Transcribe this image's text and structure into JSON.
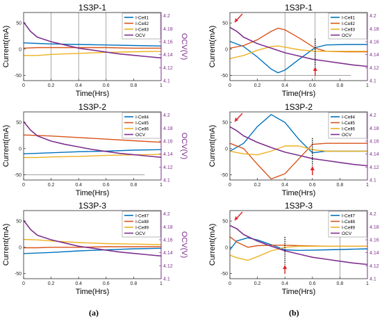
{
  "colors": {
    "c1": "#0072BD",
    "c2": "#D95319",
    "c3": "#EDB120",
    "ocv": "#7E2F8E",
    "arrow": "#E0262C",
    "axis": "#262626",
    "grid": "#6b6b6b"
  },
  "captions": {
    "a": "(a)",
    "b": "(b)"
  },
  "chart_data": [
    {
      "id": "a1",
      "type": "line",
      "title": "1S3P-1",
      "xlabel": "Time(Hrs)",
      "ylabel": "Current(mA)",
      "y2label": "OCV(V)",
      "xlim": [
        0,
        1
      ],
      "ylim": [
        -60,
        70
      ],
      "y2lim": [
        4.1,
        4.205
      ],
      "xticks": [
        "0",
        "0.2",
        "0.4",
        "0.6",
        "0.8",
        "1"
      ],
      "yticks": [
        "-50",
        "0",
        "50"
      ],
      "y2ticks": [
        "4.1",
        "4.12",
        "4.14",
        "4.16",
        "4.18",
        "4.2"
      ],
      "legend": [
        "I-Cell1",
        "I-Cell2",
        "I-Cell3",
        "OCV"
      ],
      "series": [
        {
          "name": "I-Cell1",
          "x": [
            0,
            0.1,
            0.2,
            0.4,
            0.6,
            0.8,
            1.0
          ],
          "y": [
            12,
            11,
            10,
            9,
            8,
            7,
            6
          ]
        },
        {
          "name": "I-Cell2",
          "x": [
            0,
            0.1,
            0.2,
            0.4,
            0.6,
            0.8,
            1.0
          ],
          "y": [
            2,
            3,
            3,
            3,
            3,
            2,
            2
          ]
        },
        {
          "name": "I-Cell3",
          "x": [
            0,
            0.1,
            0.2,
            0.4,
            0.6,
            0.8,
            1.0
          ],
          "y": [
            -12,
            -12,
            -10,
            -8,
            -6,
            -5,
            -4
          ]
        },
        {
          "name": "OCV",
          "x": [
            0,
            0.05,
            0.1,
            0.2,
            0.3,
            0.4,
            0.5,
            0.6,
            0.7,
            0.8,
            0.9,
            1.0
          ],
          "y": [
            4.19,
            4.176,
            4.167,
            4.16,
            4.155,
            4.15,
            4.147,
            4.144,
            4.141,
            4.139,
            4.137,
            4.135
          ]
        }
      ],
      "vlines": [
        0.2,
        0.4,
        0.6
      ],
      "hlines": []
    },
    {
      "id": "a2",
      "type": "line",
      "title": "1S3P-2",
      "xlabel": "Time(Hrs)",
      "ylabel": "Current(mA)",
      "y2label": "OCV(V)",
      "xlim": [
        0,
        1
      ],
      "ylim": [
        -60,
        70
      ],
      "y2lim": [
        4.1,
        4.205
      ],
      "xticks": [
        "0",
        "0.2",
        "0.4",
        "0.6",
        "0.8",
        "1"
      ],
      "yticks": [
        "-50",
        "0",
        "50"
      ],
      "y2ticks": [
        "4.1",
        "4.12",
        "4.14",
        "4.16",
        "4.18",
        "4.2"
      ],
      "legend": [
        "I-Cell4",
        "I-Cell5",
        "I-Cell6",
        "OCV"
      ],
      "series": [
        {
          "name": "I-Cell4",
          "x": [
            0,
            0.1,
            0.2,
            0.4,
            0.6,
            0.8,
            1.0
          ],
          "y": [
            -10,
            -9,
            -8,
            -6,
            -5,
            -3,
            -2
          ]
        },
        {
          "name": "I-Cell5",
          "x": [
            0,
            0.1,
            0.2,
            0.4,
            0.6,
            0.8,
            1.0
          ],
          "y": [
            26,
            25,
            24,
            21,
            18,
            15,
            12
          ]
        },
        {
          "name": "I-Cell6",
          "x": [
            0,
            0.1,
            0.2,
            0.4,
            0.6,
            0.8,
            1.0
          ],
          "y": [
            -17,
            -17,
            -16,
            -15,
            -13,
            -12,
            -11
          ]
        },
        {
          "name": "OCV",
          "x": [
            0,
            0.05,
            0.1,
            0.2,
            0.3,
            0.4,
            0.5,
            0.6,
            0.7,
            0.8,
            0.9,
            1.0
          ],
          "y": [
            4.19,
            4.177,
            4.168,
            4.16,
            4.155,
            4.151,
            4.147,
            4.144,
            4.141,
            4.139,
            4.137,
            4.135
          ]
        }
      ],
      "vlines": [],
      "hlines": [
        -50
      ]
    },
    {
      "id": "a3",
      "type": "line",
      "title": "1S3P-3",
      "xlabel": "Time(Hrs)",
      "ylabel": "Current(mA)",
      "y2label": "OCV(V)",
      "xlim": [
        0,
        1
      ],
      "ylim": [
        -60,
        70
      ],
      "y2lim": [
        4.1,
        4.205
      ],
      "xticks": [
        "0",
        "0.2",
        "0.4",
        "0.6",
        "0.8",
        "1"
      ],
      "yticks": [
        "-50",
        "0",
        "50"
      ],
      "y2ticks": [
        "4.1",
        "4.12",
        "4.14",
        "4.16",
        "4.18",
        "4.2"
      ],
      "legend": [
        "I-Cell7",
        "I-Cell8",
        "I-Cell9",
        "OCV"
      ],
      "series": [
        {
          "name": "I-Cell7",
          "x": [
            0,
            0.1,
            0.2,
            0.4,
            0.6,
            0.8,
            1.0
          ],
          "y": [
            -12,
            -11,
            -10,
            -7,
            -5,
            -3,
            -2
          ]
        },
        {
          "name": "I-Cell8",
          "x": [
            0,
            0.1,
            0.2,
            0.4,
            0.6,
            0.8,
            1.0
          ],
          "y": [
            -1,
            -1,
            0,
            0,
            1,
            1,
            1
          ]
        },
        {
          "name": "I-Cell9",
          "x": [
            0,
            0.1,
            0.2,
            0.4,
            0.6,
            0.8,
            1.0
          ],
          "y": [
            15,
            14,
            12,
            9,
            7,
            6,
            5
          ]
        },
        {
          "name": "OCV",
          "x": [
            0,
            0.05,
            0.1,
            0.2,
            0.3,
            0.4,
            0.5,
            0.6,
            0.7,
            0.8,
            0.9,
            1.0
          ],
          "y": [
            4.19,
            4.176,
            4.167,
            4.16,
            4.155,
            4.15,
            4.147,
            4.144,
            4.141,
            4.139,
            4.137,
            4.135
          ]
        }
      ],
      "vlines": [],
      "hlines": []
    },
    {
      "id": "b1",
      "type": "line",
      "title": "1S3P-1",
      "xlabel": "Time(Hrs)",
      "ylabel": "Current(mA)",
      "y2label": "OCV(V)",
      "xlim": [
        0,
        1
      ],
      "ylim": [
        -60,
        70
      ],
      "y2lim": [
        4.1,
        4.205
      ],
      "xticks": [
        "0",
        "0.2",
        "0.4",
        "0.6",
        "0.8",
        "1"
      ],
      "yticks": [
        "-50",
        "0",
        "50"
      ],
      "y2ticks": [
        "4.1",
        "4.12",
        "4.14",
        "4.16",
        "4.18",
        "4.2"
      ],
      "legend": [
        "I-Cell1",
        "I-Cell2",
        "I-Cell3",
        "OCV"
      ],
      "series": [
        {
          "name": "I-Cell1",
          "x": [
            0,
            0.1,
            0.2,
            0.3,
            0.35,
            0.4,
            0.5,
            0.62,
            0.7,
            0.85,
            1.0
          ],
          "y": [
            15,
            5,
            -15,
            -38,
            -45,
            -40,
            -20,
            3,
            8,
            9,
            9
          ]
        },
        {
          "name": "I-Cell2",
          "x": [
            0,
            0.1,
            0.2,
            0.3,
            0.35,
            0.4,
            0.5,
            0.62,
            0.7,
            0.85,
            1.0
          ],
          "y": [
            2,
            7,
            18,
            34,
            40,
            37,
            22,
            2,
            -4,
            -5,
            -5
          ]
        },
        {
          "name": "I-Cell3",
          "x": [
            0,
            0.1,
            0.2,
            0.3,
            0.35,
            0.4,
            0.5,
            0.62,
            0.7,
            0.85,
            1.0
          ],
          "y": [
            -18,
            -12,
            -2,
            5,
            6,
            4,
            -1,
            -4,
            -4,
            -4,
            -4
          ]
        },
        {
          "name": "OCV",
          "x": [
            0,
            0.05,
            0.1,
            0.2,
            0.3,
            0.4,
            0.5,
            0.6,
            0.7,
            0.8,
            0.9,
            1.0
          ],
          "y": [
            4.182,
            4.176,
            4.167,
            4.157,
            4.15,
            4.143,
            4.138,
            4.133,
            4.13,
            4.127,
            4.124,
            4.122
          ]
        }
      ],
      "vlines": [
        0.4,
        0.62
      ],
      "hlines": [
        -50
      ],
      "dotted": [
        0.62
      ],
      "arrows": [
        0.03,
        0.62
      ]
    },
    {
      "id": "b2",
      "type": "line",
      "title": "1S3P-2",
      "xlabel": "Time(Hrs)",
      "ylabel": "Current(mA)",
      "y2label": "OCV(V)",
      "xlim": [
        0,
        1
      ],
      "ylim": [
        -60,
        70
      ],
      "y2lim": [
        4.1,
        4.205
      ],
      "xticks": [
        "0",
        "0.2",
        "0.4",
        "0.6",
        "0.8",
        "1"
      ],
      "yticks": [
        "-50",
        "0",
        "50"
      ],
      "y2ticks": [
        "4.1",
        "4.12",
        "4.14",
        "4.16",
        "4.18",
        "4.2"
      ],
      "legend": [
        "I-Cell4",
        "I-Cell5",
        "I-Cell6",
        "OCV"
      ],
      "series": [
        {
          "name": "I-Cell4",
          "x": [
            0,
            0.1,
            0.2,
            0.3,
            0.4,
            0.5,
            0.6,
            0.7,
            0.8,
            1.0
          ],
          "y": [
            -5,
            10,
            42,
            65,
            50,
            18,
            -8,
            -5,
            -5,
            -5
          ]
        },
        {
          "name": "I-Cell5",
          "x": [
            0,
            0.1,
            0.2,
            0.3,
            0.4,
            0.5,
            0.6,
            0.7,
            0.8,
            1.0
          ],
          "y": [
            10,
            0,
            -30,
            -58,
            -48,
            -20,
            8,
            10,
            10,
            10
          ]
        },
        {
          "name": "I-Cell6",
          "x": [
            0,
            0.1,
            0.2,
            0.3,
            0.4,
            0.5,
            0.6,
            0.7,
            0.8,
            1.0
          ],
          "y": [
            -5,
            -10,
            -12,
            -5,
            5,
            5,
            -2,
            -5,
            -5,
            -5
          ]
        },
        {
          "name": "OCV",
          "x": [
            0,
            0.05,
            0.1,
            0.2,
            0.3,
            0.4,
            0.5,
            0.6,
            0.7,
            0.8,
            0.9,
            1.0
          ],
          "y": [
            4.182,
            4.176,
            4.168,
            4.158,
            4.15,
            4.143,
            4.138,
            4.133,
            4.13,
            4.127,
            4.124,
            4.122
          ]
        }
      ],
      "vlines": [],
      "hlines": [],
      "dotted": [
        0.6
      ],
      "arrows": [
        0.03,
        0.6
      ]
    },
    {
      "id": "b3",
      "type": "line",
      "title": "1S3P-3",
      "xlabel": "Time(Hrs)",
      "ylabel": "Current(mA)",
      "y2label": "OCV(V)",
      "xlim": [
        0,
        1
      ],
      "ylim": [
        -60,
        70
      ],
      "y2lim": [
        4.1,
        4.205
      ],
      "xticks": [
        "0",
        "0.2",
        "0.4",
        "0.6",
        "0.8",
        "1"
      ],
      "yticks": [
        "-50",
        "0",
        "50"
      ],
      "y2ticks": [
        "4.1",
        "4.12",
        "4.14",
        "4.16",
        "4.18",
        "4.2"
      ],
      "legend": [
        "I-Cell7",
        "I-Cell8",
        "I-Cell9",
        "OCV"
      ],
      "series": [
        {
          "name": "I-Cell7",
          "x": [
            0,
            0.05,
            0.13,
            0.2,
            0.3,
            0.4,
            0.5,
            0.7,
            1.0
          ],
          "y": [
            -5,
            12,
            18,
            14,
            5,
            -5,
            -6,
            -5,
            -3
          ]
        },
        {
          "name": "I-Cell8",
          "x": [
            0,
            0.05,
            0.13,
            0.2,
            0.3,
            0.4,
            0.5,
            0.7,
            1.0
          ],
          "y": [
            20,
            10,
            0,
            3,
            4,
            4,
            3,
            2,
            2
          ]
        },
        {
          "name": "I-Cell9",
          "x": [
            0,
            0.05,
            0.13,
            0.2,
            0.3,
            0.4,
            0.5,
            0.7,
            1.0
          ],
          "y": [
            -15,
            -20,
            -25,
            -18,
            -7,
            0,
            2,
            2,
            2
          ]
        },
        {
          "name": "OCV",
          "x": [
            0,
            0.05,
            0.1,
            0.2,
            0.3,
            0.4,
            0.5,
            0.6,
            0.7,
            0.8,
            0.9,
            1.0
          ],
          "y": [
            4.182,
            4.177,
            4.168,
            4.158,
            4.15,
            4.143,
            4.138,
            4.133,
            4.13,
            4.127,
            4.124,
            4.122
          ]
        }
      ],
      "vlines": [
        0.8
      ],
      "hlines": [],
      "dotted": [
        0.4
      ],
      "arrows": [
        0.03,
        0.4
      ]
    }
  ]
}
